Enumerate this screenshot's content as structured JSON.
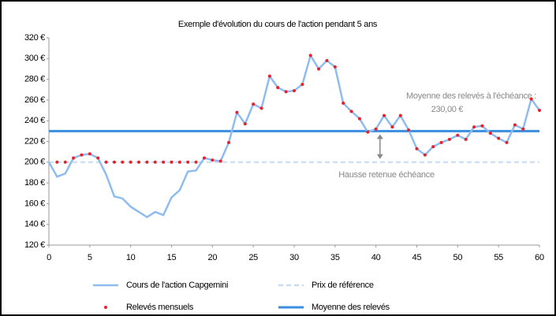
{
  "chart_data": {
    "type": "line",
    "title": "Exemple d'évolution du cours de l'action pendant 5 ans",
    "x": [
      0,
      1,
      2,
      3,
      4,
      5,
      6,
      7,
      8,
      9,
      10,
      11,
      12,
      13,
      14,
      15,
      16,
      17,
      18,
      19,
      20,
      21,
      22,
      23,
      24,
      25,
      26,
      27,
      28,
      29,
      30,
      31,
      32,
      33,
      34,
      35,
      36,
      37,
      38,
      39,
      40,
      41,
      42,
      43,
      44,
      45,
      46,
      47,
      48,
      49,
      50,
      51,
      52,
      53,
      54,
      55,
      56,
      57,
      58,
      59,
      60
    ],
    "series": [
      {
        "name": "Cours de l'action Capgemini",
        "color": "#8fbcf0",
        "style": "line",
        "values": [
          200,
          186,
          189,
          204,
          207,
          208,
          204,
          188,
          167,
          165,
          157,
          152,
          147,
          152,
          149,
          166,
          173,
          191,
          192,
          204,
          202,
          201,
          219,
          248,
          237,
          256,
          252,
          283,
          272,
          268,
          269,
          275,
          303,
          290,
          298,
          292,
          257,
          249,
          242,
          229,
          232,
          245,
          234,
          245,
          231,
          213,
          207,
          215,
          219,
          222,
          226,
          222,
          234,
          235,
          228,
          223,
          219,
          236,
          232,
          261,
          250
        ]
      },
      {
        "name": "Relevés mensuels",
        "color": "#e8202a",
        "style": "dots",
        "values": [
          null,
          200,
          200,
          204,
          207,
          208,
          204,
          200,
          200,
          200,
          200,
          200,
          200,
          200,
          200,
          200,
          200,
          200,
          200,
          204,
          202,
          201,
          219,
          248,
          237,
          256,
          252,
          283,
          272,
          268,
          269,
          275,
          303,
          290,
          298,
          292,
          257,
          249,
          242,
          229,
          232,
          245,
          234,
          245,
          231,
          213,
          207,
          215,
          219,
          222,
          226,
          222,
          234,
          235,
          228,
          223,
          219,
          236,
          232,
          261,
          250
        ]
      }
    ],
    "hlines": [
      {
        "name": "Prix de référence",
        "value": 200,
        "color": "#c5dcf5",
        "dashed": true
      },
      {
        "name": "Moyenne des relevés",
        "value": 230,
        "color": "#3a8ee0",
        "dashed": false
      }
    ],
    "annotations": [
      "Moyenne des relevés à l'échéance :",
      "230,00 €",
      "Hausse retenue échéance"
    ],
    "xlim": [
      0,
      60
    ],
    "xticks": [
      0,
      5,
      10,
      15,
      20,
      25,
      30,
      35,
      40,
      45,
      50,
      55,
      60
    ],
    "ylim": [
      120,
      320
    ],
    "yticks": [
      {
        "value": 120,
        "label": "120 €"
      },
      {
        "value": 140,
        "label": "140 €"
      },
      {
        "value": 160,
        "label": "160 €"
      },
      {
        "value": 180,
        "label": "180 €"
      },
      {
        "value": 200,
        "label": "200 €"
      },
      {
        "value": 220,
        "label": "220 €"
      },
      {
        "value": 240,
        "label": "240 €"
      },
      {
        "value": 260,
        "label": "260 €"
      },
      {
        "value": 280,
        "label": "280 €"
      },
      {
        "value": 300,
        "label": "300 €"
      },
      {
        "value": 320,
        "label": "320 €"
      }
    ]
  }
}
